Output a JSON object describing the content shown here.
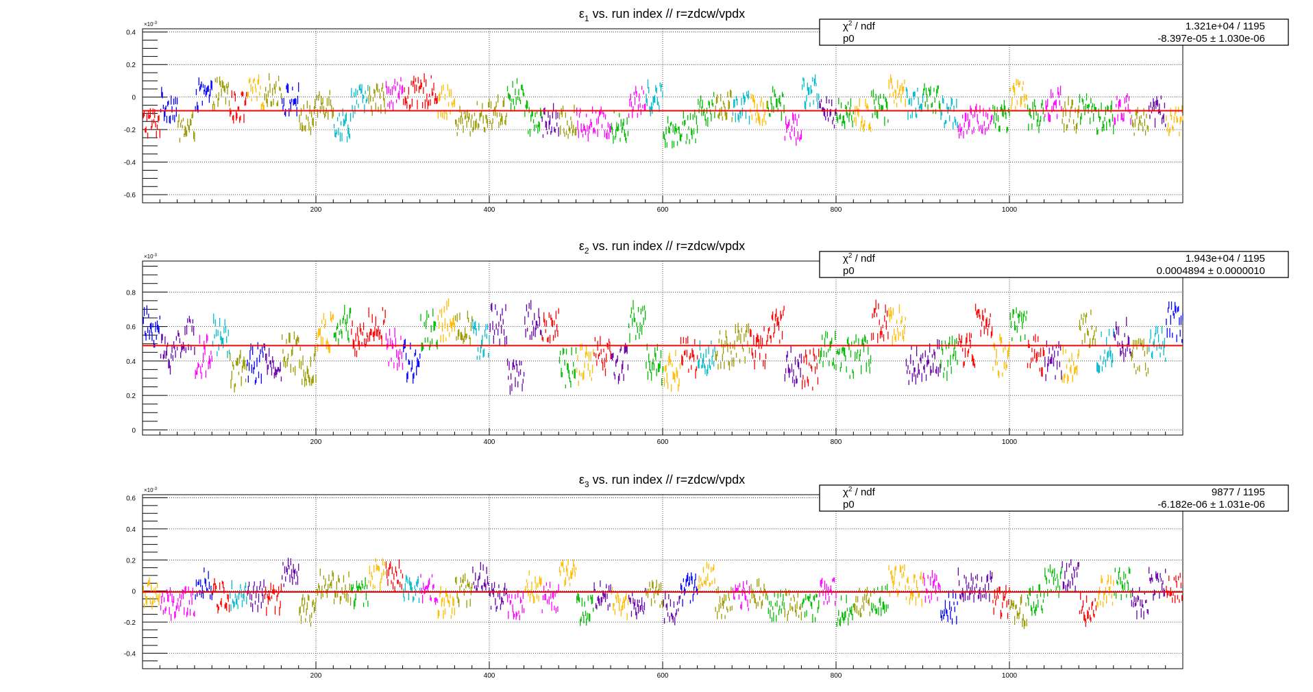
{
  "chart_data": [
    {
      "type": "scatter",
      "title": {
        "sym": "ε",
        "sub": "1",
        "rest": " vs. run index // r=zdcw/vpdx"
      },
      "y_exponent": "×10",
      "y_exponent_power": "-3",
      "xlim": [
        0,
        1200
      ],
      "ylim": [
        -0.00065,
        0.00042
      ],
      "x_ticks": [
        200,
        400,
        600,
        800,
        1000
      ],
      "x_tick_labels": [
        "200",
        "400",
        "600",
        "800",
        "1000"
      ],
      "y_ticks": [
        -0.6,
        -0.4,
        -0.2,
        0,
        0.2,
        0.4
      ],
      "y_tick_labels": [
        "-0.6",
        "-0.4",
        "-0.2",
        "0",
        "0.2",
        "0.4"
      ],
      "grid": true,
      "fit": {
        "name": "p0",
        "value": -8.397e-05,
        "color": "#ff0000"
      },
      "stats": {
        "chi2_label": "χ",
        "chi2_power": "2",
        "chi2_rest": " / ndf",
        "chi2_value": "1.321e+04 / 1195",
        "p0_label": "p0",
        "p0_value": "-8.397e-05 ± 1.030e-06"
      },
      "series_style": {
        "segment_runs": 20,
        "colors": [
          "#0000ff",
          "#00bb00",
          "#00bbcc",
          "#ffbb00",
          "#ff00ff",
          "#ff0000",
          "#6600aa",
          "#999900"
        ],
        "spread": 9e-05,
        "errors": 2e-05,
        "n_points": 1200
      }
    },
    {
      "type": "scatter",
      "title": {
        "sym": "ε",
        "sub": "2",
        "rest": " vs. run index // r=zdcw/vpdx"
      },
      "y_exponent": "×10",
      "y_exponent_power": "-3",
      "xlim": [
        0,
        1200
      ],
      "ylim": [
        -3e-05,
        0.00098
      ],
      "x_ticks": [
        200,
        400,
        600,
        800,
        1000
      ],
      "x_tick_labels": [
        "200",
        "400",
        "600",
        "800",
        "1000"
      ],
      "y_ticks": [
        0,
        0.2,
        0.4,
        0.6,
        0.8
      ],
      "y_tick_labels": [
        "0",
        "0.2",
        "0.4",
        "0.6",
        "0.8"
      ],
      "grid": true,
      "fit": {
        "name": "p0",
        "value": 0.0004894,
        "color": "#ff0000"
      },
      "stats": {
        "chi2_label": "χ",
        "chi2_power": "2",
        "chi2_rest": " / ndf",
        "chi2_value": "1.943e+04 / 1195",
        "p0_label": "p0",
        "p0_value": "0.0004894 ± 0.0000010"
      },
      "series_style": {
        "segment_runs": 20,
        "colors": [
          "#0000ff",
          "#00bb00",
          "#00bbcc",
          "#ffbb00",
          "#ff00ff",
          "#ff0000",
          "#6600aa",
          "#999900"
        ],
        "spread": 0.00011,
        "errors": 2e-05,
        "n_points": 1200
      }
    },
    {
      "type": "scatter",
      "title": {
        "sym": "ε",
        "sub": "3",
        "rest": " vs. run index // r=zdcw/vpdx"
      },
      "y_exponent": "×10",
      "y_exponent_power": "-3",
      "xlim": [
        0,
        1200
      ],
      "ylim": [
        -0.0005,
        0.00062
      ],
      "x_ticks": [
        200,
        400,
        600,
        800,
        1000
      ],
      "x_tick_labels": [
        "200",
        "400",
        "600",
        "800",
        "1000"
      ],
      "y_ticks": [
        -0.4,
        -0.2,
        0,
        0.2,
        0.4,
        0.6
      ],
      "y_tick_labels": [
        "-0.4",
        "-0.2",
        "0",
        "0.2",
        "0.4",
        "0.6"
      ],
      "grid": true,
      "fit": {
        "name": "p0",
        "value": -6.182e-06,
        "color": "#ff0000"
      },
      "stats": {
        "chi2_label": "χ",
        "chi2_power": "2",
        "chi2_rest": " / ndf",
        "chi2_value": "9877 / 1195",
        "p0_label": "p0",
        "p0_value": "-6.182e-06 ± 1.031e-06"
      },
      "series_style": {
        "segment_runs": 20,
        "colors": [
          "#0000ff",
          "#00bb00",
          "#00bbcc",
          "#ffbb00",
          "#ff00ff",
          "#ff0000",
          "#6600aa",
          "#999900"
        ],
        "spread": 9e-05,
        "errors": 2e-05,
        "n_points": 1200
      }
    }
  ]
}
